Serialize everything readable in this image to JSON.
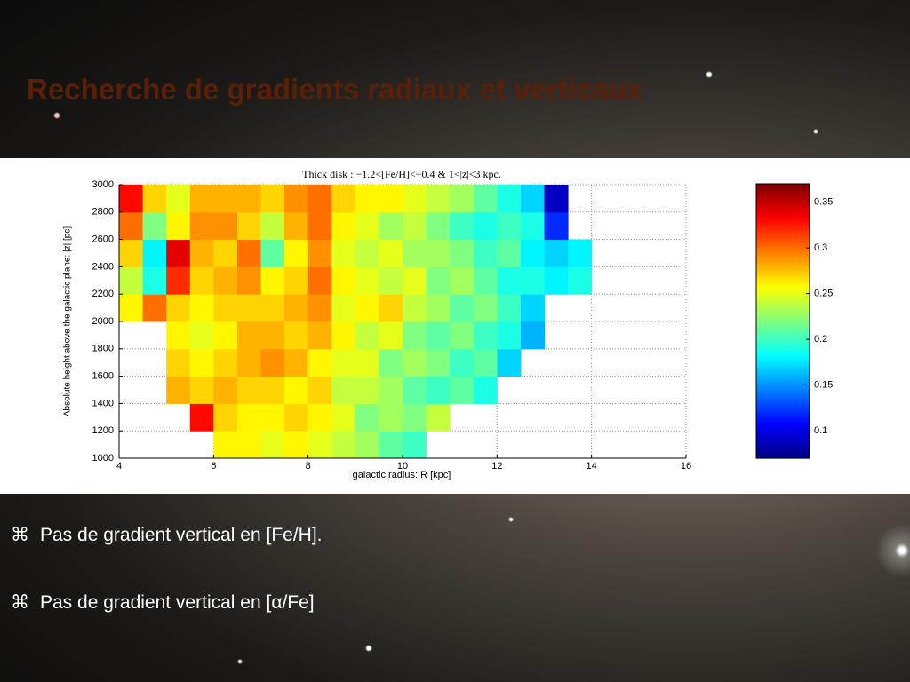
{
  "slide": {
    "title": "Recherche de gradients radiaux et verticaux",
    "bullets": [
      {
        "marker": "⌘",
        "text": "Pas de gradient vertical en [Fe/H]."
      },
      {
        "marker": "⌘",
        "text": "Pas de gradient vertical en [α/Fe]"
      }
    ]
  },
  "chart_data": {
    "type": "heatmap",
    "title": "Thick disk : −1.2<[Fe/H]<−0.4 & 1<|z|<3 kpc.",
    "x_label": "galactic radius: R [kpc]",
    "y_label": "Absolute height above the galactic plane: |z| [pc]",
    "xbins": [
      4,
      4.5,
      5,
      5.5,
      6,
      6.5,
      7,
      7.5,
      8,
      8.5,
      9,
      9.5,
      10,
      10.5,
      11,
      11.5,
      12,
      12.5,
      13,
      13.5,
      14
    ],
    "ybins": [
      1000,
      1200,
      1400,
      1600,
      1800,
      2000,
      2200,
      2400,
      2600,
      2800,
      3000
    ],
    "values": [
      [
        null,
        null,
        null,
        null,
        0.26,
        0.26,
        0.25,
        0.26,
        0.25,
        0.24,
        0.23,
        0.21,
        0.2,
        null,
        null,
        null,
        null,
        null,
        null,
        null
      ],
      [
        null,
        null,
        null,
        0.33,
        0.27,
        0.26,
        0.26,
        0.27,
        0.26,
        0.25,
        0.22,
        0.23,
        0.22,
        0.24,
        null,
        null,
        null,
        null,
        null,
        null
      ],
      [
        null,
        null,
        0.28,
        0.27,
        0.28,
        0.27,
        0.27,
        0.26,
        0.27,
        0.24,
        0.24,
        0.23,
        0.21,
        0.2,
        0.21,
        0.19,
        null,
        null,
        null,
        null
      ],
      [
        null,
        null,
        0.27,
        0.26,
        0.27,
        0.28,
        0.29,
        0.28,
        0.26,
        0.25,
        0.25,
        0.22,
        0.23,
        0.22,
        0.2,
        0.21,
        0.17,
        null,
        null,
        null
      ],
      [
        null,
        null,
        0.26,
        0.25,
        0.26,
        0.28,
        0.28,
        0.27,
        0.28,
        0.26,
        0.24,
        0.25,
        0.22,
        0.21,
        0.22,
        0.2,
        0.19,
        0.16,
        null,
        null
      ],
      [
        0.26,
        0.3,
        0.27,
        0.26,
        0.27,
        0.27,
        0.27,
        0.28,
        0.29,
        0.25,
        0.26,
        0.27,
        0.24,
        0.23,
        0.21,
        0.22,
        0.2,
        0.17,
        null,
        null
      ],
      [
        0.24,
        0.19,
        0.32,
        0.27,
        0.28,
        0.29,
        0.26,
        0.27,
        0.3,
        0.26,
        0.25,
        0.24,
        0.25,
        0.22,
        0.23,
        0.21,
        0.19,
        0.19,
        0.18,
        0.19
      ],
      [
        0.27,
        0.18,
        0.34,
        0.28,
        0.27,
        0.3,
        0.21,
        0.26,
        0.29,
        0.25,
        0.24,
        0.25,
        0.23,
        0.23,
        0.22,
        0.2,
        0.21,
        0.18,
        0.17,
        0.18
      ],
      [
        0.3,
        0.22,
        0.26,
        0.29,
        0.29,
        0.27,
        0.24,
        0.28,
        0.3,
        0.26,
        0.25,
        0.23,
        0.24,
        0.22,
        0.2,
        0.19,
        0.2,
        0.19,
        0.12,
        null
      ],
      [
        0.33,
        0.27,
        0.25,
        0.28,
        0.28,
        0.28,
        0.27,
        0.29,
        0.3,
        0.27,
        0.26,
        0.26,
        0.25,
        0.24,
        0.23,
        0.21,
        0.19,
        0.17,
        0.09,
        null
      ]
    ],
    "xlim": [
      4,
      16
    ],
    "ylim": [
      1000,
      3000
    ],
    "xticks": [
      4,
      6,
      8,
      10,
      12,
      14,
      16
    ],
    "yticks": [
      1000,
      1200,
      1400,
      1600,
      1800,
      2000,
      2200,
      2400,
      2600,
      2800,
      3000
    ],
    "grid": true,
    "colormap": "jet",
    "clim": [
      0.07,
      0.37
    ],
    "cticks": [
      0.1,
      0.15,
      0.2,
      0.25,
      0.3,
      0.35
    ]
  }
}
